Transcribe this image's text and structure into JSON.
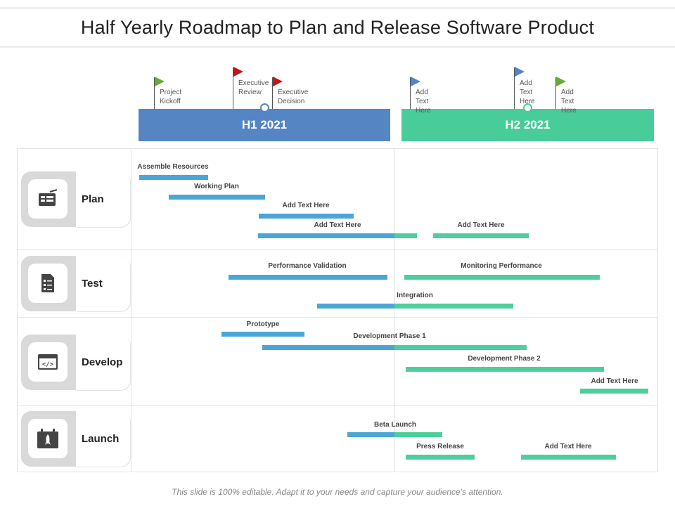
{
  "title": "Half Yearly Roadmap to Plan and Release Software Product",
  "colors": {
    "h1": "#5585c3",
    "h2": "#48cc9a",
    "bar_blue": "#4aa6d6",
    "bar_green": "#4ccf9b",
    "flag_green": "#6aaa3a",
    "flag_red": "#c0161a",
    "flag_blue": "#4f87c6"
  },
  "halves": [
    {
      "label": "H1 2021"
    },
    {
      "label": "H2 2021"
    }
  ],
  "milestones": [
    {
      "label": "Project\nKickoff",
      "flag": "flag_green"
    },
    {
      "label": "Executive\nReview",
      "flag": "flag_red"
    },
    {
      "label": "Executive\nDecision",
      "flag": "flag_red"
    },
    {
      "label": "Add Text\nHere",
      "flag": "flag_blue"
    },
    {
      "label": "Add Text\nHere",
      "flag": "flag_blue"
    },
    {
      "label": "Add Text\nHere",
      "flag": "flag_green"
    }
  ],
  "rows": [
    {
      "label": "Plan",
      "icon": "blueprint-icon"
    },
    {
      "label": "Test",
      "icon": "checklist-document-icon"
    },
    {
      "label": "Develop",
      "icon": "code-window-icon"
    },
    {
      "label": "Launch",
      "icon": "rocket-calendar-icon"
    }
  ],
  "tasks": [
    "Assemble Resources",
    "Working Plan",
    "Add Text Here",
    "Add Text Here",
    "Add Text Here",
    "Performance Validation",
    "Monitoring Performance",
    "Integration",
    "Prototype",
    "Development Phase 1",
    "Development Phase 2",
    "Add Text Here",
    "Beta Launch",
    "Press Release",
    "Add Text Here"
  ],
  "footer": "This slide is 100% editable. Adapt it to your needs and capture your audience's attention."
}
